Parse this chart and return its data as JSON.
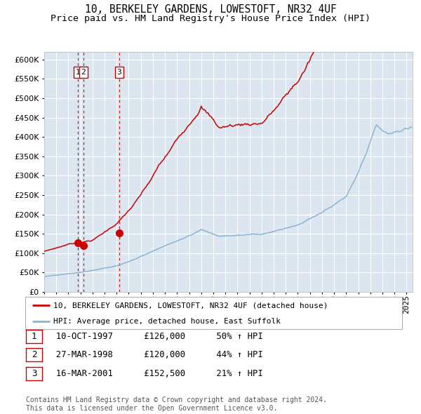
{
  "title": "10, BERKELEY GARDENS, LOWESTOFT, NR32 4UF",
  "subtitle": "Price paid vs. HM Land Registry's House Price Index (HPI)",
  "ylim": [
    0,
    620000
  ],
  "yticks": [
    0,
    50000,
    100000,
    150000,
    200000,
    250000,
    300000,
    350000,
    400000,
    450000,
    500000,
    550000,
    600000
  ],
  "ytick_labels": [
    "£0",
    "£50K",
    "£100K",
    "£150K",
    "£200K",
    "£250K",
    "£300K",
    "£350K",
    "£400K",
    "£450K",
    "£500K",
    "£550K",
    "£600K"
  ],
  "xlim_start": 1995.0,
  "xlim_end": 2025.5,
  "plot_bg_color": "#dce6f0",
  "line_color_red": "#cc0000",
  "line_color_blue": "#8ab4d4",
  "grid_color": "#ffffff",
  "sale_dates": [
    1997.78,
    1998.24,
    2001.21
  ],
  "sale_values": [
    126000,
    120000,
    152500
  ],
  "sale_labels": [
    "1",
    "2",
    "3"
  ],
  "legend_label_red": "10, BERKELEY GARDENS, LOWESTOFT, NR32 4UF (detached house)",
  "legend_label_blue": "HPI: Average price, detached house, East Suffolk",
  "table_rows": [
    {
      "num": "1",
      "date": "10-OCT-1997",
      "price": "£126,000",
      "hpi": "50% ↑ HPI"
    },
    {
      "num": "2",
      "date": "27-MAR-1998",
      "price": "£120,000",
      "hpi": "44% ↑ HPI"
    },
    {
      "num": "3",
      "date": "16-MAR-2001",
      "price": "£152,500",
      "hpi": "21% ↑ HPI"
    }
  ],
  "footer_text": "Contains HM Land Registry data © Crown copyright and database right 2024.\nThis data is licensed under the Open Government Licence v3.0.",
  "title_fontsize": 10.5,
  "subtitle_fontsize": 9.5,
  "tick_fontsize": 8,
  "legend_fontsize": 8
}
